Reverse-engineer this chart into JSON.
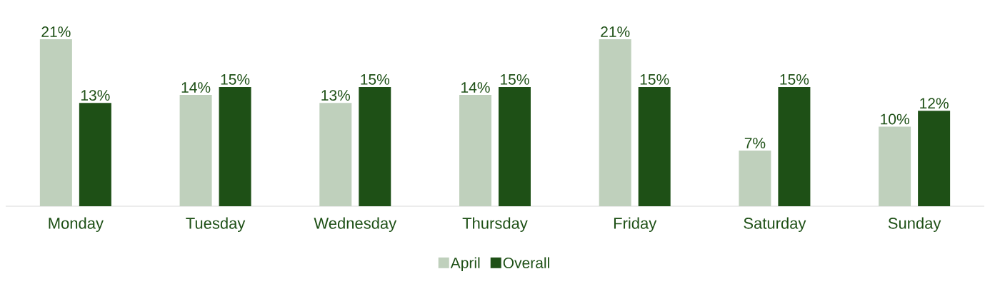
{
  "chart_data": {
    "type": "bar",
    "categories": [
      "Monday",
      "Tuesday",
      "Wednesday",
      "Thursday",
      "Friday",
      "Saturday",
      "Sunday"
    ],
    "series": [
      {
        "name": "April",
        "color": "#bfd0bc",
        "values": [
          21,
          14,
          13,
          14,
          21,
          7,
          10
        ],
        "value_labels": [
          "21%",
          "14%",
          "13%",
          "14%",
          "21%",
          "7%",
          "10%"
        ]
      },
      {
        "name": "Overall",
        "color": "#1e5016",
        "values": [
          13,
          15,
          15,
          15,
          15,
          15,
          12
        ],
        "value_labels": [
          "13%",
          "15%",
          "15%",
          "15%",
          "15%",
          "15%",
          "12%"
        ]
      }
    ],
    "legend": "bottom"
  }
}
